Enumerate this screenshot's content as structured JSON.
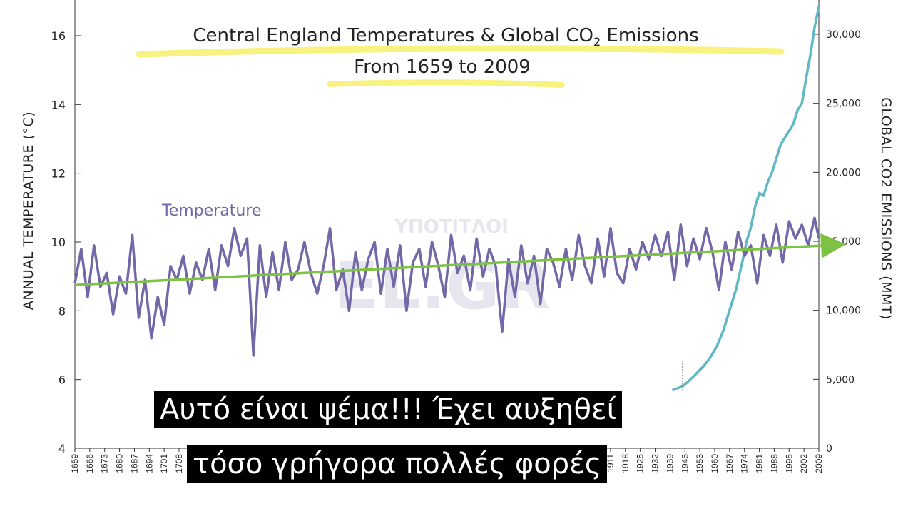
{
  "chart_data": {
    "type": "line",
    "title": "Central England Temperatures & Global CO",
    "title_subscript": "2",
    "title_suffix": " Emissions",
    "subtitle": "From 1659 to 2009",
    "ylabel": "ANNUAL TEMPERATURE (°C)",
    "y2label": "GLOBAL CO2 EMISSIONS (MMT)",
    "xlim": [
      1659,
      2009
    ],
    "ylim": [
      4,
      17
    ],
    "y2lim": [
      0,
      32000
    ],
    "y_ticks": [
      4,
      6,
      8,
      10,
      12,
      14,
      16
    ],
    "y2_ticks": [
      "0",
      "5,000",
      "10,000",
      "15,000",
      "20,000",
      "25,000",
      "30,000"
    ],
    "y2_tick_values": [
      0,
      5000,
      10000,
      15000,
      20000,
      25000,
      30000
    ],
    "x_ticks": [
      1659,
      1666,
      1673,
      1680,
      1687,
      1694,
      1701,
      1708,
      1715,
      1722,
      1729,
      1736,
      1743,
      1750,
      1757,
      1764,
      1771,
      1778,
      1785,
      1792,
      1799,
      1806,
      1813,
      1820,
      1827,
      1834,
      1841,
      1848,
      1855,
      1862,
      1869,
      1876,
      1883,
      1890,
      1897,
      1904,
      1911,
      1918,
      1925,
      1932,
      1939,
      1946,
      1953,
      1960,
      1967,
      1974,
      1981,
      1988,
      1995,
      2002,
      2009
    ],
    "series": [
      {
        "name": "Temperature",
        "color": "#7367a8",
        "axis": "left",
        "x": [
          1659,
          1662,
          1665,
          1668,
          1671,
          1674,
          1677,
          1680,
          1683,
          1686,
          1689,
          1692,
          1695,
          1698,
          1701,
          1704,
          1707,
          1710,
          1713,
          1716,
          1719,
          1722,
          1725,
          1728,
          1731,
          1734,
          1737,
          1740,
          1743,
          1746,
          1749,
          1752,
          1755,
          1758,
          1761,
          1764,
          1767,
          1770,
          1773,
          1776,
          1779,
          1782,
          1785,
          1788,
          1791,
          1794,
          1797,
          1800,
          1803,
          1806,
          1809,
          1812,
          1815,
          1818,
          1821,
          1824,
          1827,
          1830,
          1833,
          1836,
          1839,
          1842,
          1845,
          1848,
          1851,
          1854,
          1857,
          1860,
          1863,
          1866,
          1869,
          1872,
          1875,
          1878,
          1881,
          1884,
          1887,
          1890,
          1893,
          1896,
          1899,
          1902,
          1905,
          1908,
          1911,
          1914,
          1917,
          1920,
          1923,
          1926,
          1929,
          1932,
          1935,
          1938,
          1941,
          1944,
          1947,
          1950,
          1953,
          1956,
          1959,
          1962,
          1965,
          1968,
          1971,
          1974,
          1977,
          1980,
          1983,
          1986,
          1989,
          1992,
          1995,
          1998,
          2001,
          2004,
          2007,
          2009
        ],
        "values": [
          8.8,
          9.8,
          8.4,
          9.9,
          8.7,
          9.1,
          7.9,
          9.0,
          8.5,
          10.2,
          7.8,
          8.9,
          7.2,
          8.4,
          7.6,
          9.3,
          8.9,
          9.6,
          8.5,
          9.4,
          8.9,
          9.8,
          8.6,
          9.9,
          9.3,
          10.4,
          9.6,
          10.1,
          6.7,
          9.9,
          8.4,
          9.7,
          8.6,
          10.0,
          8.9,
          9.2,
          10.0,
          9.1,
          8.5,
          9.3,
          10.4,
          8.6,
          9.2,
          8.0,
          9.7,
          8.6,
          9.5,
          10.0,
          8.5,
          9.8,
          8.7,
          9.9,
          8.0,
          9.4,
          9.8,
          8.7,
          10.0,
          9.3,
          8.4,
          10.2,
          9.1,
          9.6,
          8.6,
          10.1,
          9.0,
          9.8,
          9.3,
          7.4,
          9.5,
          8.4,
          9.9,
          8.8,
          9.6,
          8.2,
          9.8,
          9.4,
          8.7,
          9.8,
          8.9,
          10.2,
          9.3,
          8.8,
          10.1,
          9.0,
          10.4,
          9.1,
          8.8,
          9.8,
          9.2,
          10.0,
          9.5,
          10.2,
          9.6,
          10.3,
          8.9,
          10.5,
          9.3,
          10.1,
          9.5,
          10.4,
          9.7,
          8.6,
          10.0,
          9.2,
          10.3,
          9.6,
          9.9,
          8.8,
          10.2,
          9.6,
          10.5,
          9.4,
          10.6,
          10.1,
          10.5,
          9.9,
          10.7,
          10.1
        ]
      },
      {
        "name": "",
        "color": "#5fb8c4",
        "axis": "right",
        "x": [
          1940,
          1945,
          1950,
          1955,
          1958,
          1961,
          1964,
          1967,
          1970,
          1973,
          1975,
          1977,
          1979,
          1981,
          1983,
          1985,
          1987,
          1989,
          1991,
          1993,
          1995,
          1997,
          1999,
          2001,
          2003,
          2005,
          2007,
          2009
        ],
        "values": [
          4200,
          4500,
          5200,
          6000,
          6600,
          7400,
          8500,
          10000,
          11500,
          13500,
          15000,
          16000,
          17500,
          18500,
          18300,
          19300,
          20000,
          21000,
          22000,
          22500,
          23000,
          23500,
          24500,
          25000,
          26800,
          28500,
          30500,
          32000
        ]
      },
      {
        "name": "",
        "color": "#7dc242",
        "axis": "left",
        "type": "trend-arrow",
        "x": [
          1659,
          2009
        ],
        "values": [
          8.75,
          9.9
        ]
      }
    ],
    "grid": false,
    "legend": "inline"
  },
  "overlay": {
    "watermark_top": "ΥΠΟΤΙΤΛΟΙ",
    "watermark_main": "EL.GR"
  },
  "subtitles": {
    "line1": "Αυτό είναι ψέμα!!! Έχει αυξηθεί",
    "line2": "τόσο γρήγορα πολλές φορές"
  }
}
